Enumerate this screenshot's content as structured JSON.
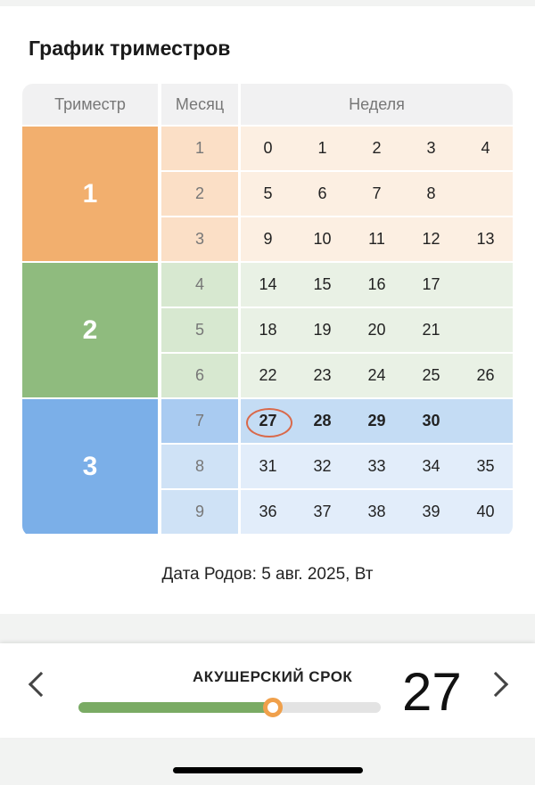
{
  "title": "График триместров",
  "headers": {
    "trimester": "Триместр",
    "month": "Месяц",
    "week": "Неделя"
  },
  "trimesters": [
    {
      "label": "1",
      "color": "#f2af6e",
      "month_bg": "#fbdfc6",
      "week_bg": "#fcefe2",
      "months": [
        {
          "m": "1",
          "weeks": [
            "0",
            "1",
            "2",
            "3",
            "4"
          ]
        },
        {
          "m": "2",
          "weeks": [
            "5",
            "6",
            "7",
            "8"
          ]
        },
        {
          "m": "3",
          "weeks": [
            "9",
            "10",
            "11",
            "12",
            "13"
          ]
        }
      ]
    },
    {
      "label": "2",
      "color": "#8fbb7e",
      "month_bg": "#d7e8d0",
      "week_bg": "#e9f1e5",
      "months": [
        {
          "m": "4",
          "weeks": [
            "14",
            "15",
            "16",
            "17"
          ]
        },
        {
          "m": "5",
          "weeks": [
            "18",
            "19",
            "20",
            "21"
          ]
        },
        {
          "m": "6",
          "weeks": [
            "22",
            "23",
            "24",
            "25",
            "26"
          ]
        }
      ]
    },
    {
      "label": "3",
      "color": "#7bafe8",
      "month_bg": "#cfe2f6",
      "week_bg": "#e2edfa",
      "months": [
        {
          "m": "7",
          "weeks": [
            "27",
            "28",
            "29",
            "30"
          ]
        },
        {
          "m": "8",
          "weeks": [
            "31",
            "32",
            "33",
            "34",
            "35"
          ]
        },
        {
          "m": "9",
          "weeks": [
            "36",
            "37",
            "38",
            "39",
            "40"
          ]
        }
      ]
    }
  ],
  "current": {
    "month": "7",
    "week": "27",
    "month_bg": "#a9cbf1",
    "week_bg": "#c4dcf4",
    "ring_color": "#d9694a"
  },
  "due_date": "Дата Родов: 5 авг. 2025, Вт",
  "bottom": {
    "label": "АКУШЕРСКИЙ СРОК",
    "value": "27",
    "slider": {
      "value": 27,
      "max": 42,
      "fill_color": "#7aab64",
      "knob_color": "#f0a04b"
    }
  }
}
